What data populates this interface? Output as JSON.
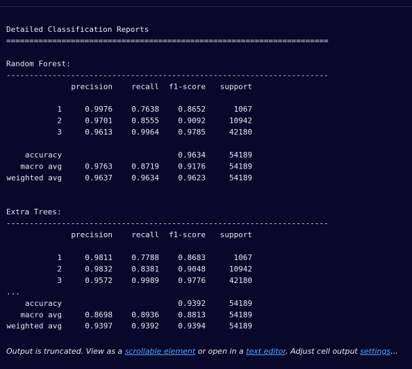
{
  "output": {
    "title": "Detailed Classification Reports",
    "title_rule": "======================================================================",
    "reports": [
      {
        "name": "Random Forest:",
        "rule": "----------------------------------------------------------------------",
        "columns": [
          "precision",
          "recall",
          "f1-score",
          "support"
        ],
        "classes": [
          {
            "label": "1",
            "values": [
              "0.9976",
              "0.7638",
              "0.8652",
              "1067"
            ]
          },
          {
            "label": "2",
            "values": [
              "0.9701",
              "0.8555",
              "0.9092",
              "10942"
            ]
          },
          {
            "label": "3",
            "values": [
              "0.9613",
              "0.9964",
              "0.9785",
              "42180"
            ]
          }
        ],
        "summary": [
          {
            "label": "accuracy",
            "values": [
              null,
              null,
              "0.9634",
              "54189"
            ]
          },
          {
            "label": "macro avg",
            "values": [
              "0.9763",
              "0.8719",
              "0.9176",
              "54189"
            ]
          },
          {
            "label": "weighted avg",
            "values": [
              "0.9637",
              "0.9634",
              "0.9623",
              "54189"
            ]
          }
        ]
      },
      {
        "name": "Extra Trees:",
        "rule": "----------------------------------------------------------------------",
        "columns": [
          "precision",
          "recall",
          "f1-score",
          "support"
        ],
        "classes": [
          {
            "label": "1",
            "values": [
              "0.9811",
              "0.7788",
              "0.8683",
              "1067"
            ]
          },
          {
            "label": "2",
            "values": [
              "0.9832",
              "0.8381",
              "0.9048",
              "10942"
            ]
          },
          {
            "label": "3",
            "values": [
              "0.9572",
              "0.9989",
              "0.9776",
              "42180"
            ]
          }
        ],
        "truncation_mark": "...",
        "summary": [
          {
            "label": "accuracy",
            "values": [
              null,
              null,
              "0.9392",
              "54189"
            ]
          },
          {
            "label": "macro avg",
            "values": [
              "0.8698",
              "0.8936",
              "0.8813",
              "54189"
            ]
          },
          {
            "label": "weighted avg",
            "values": [
              "0.9397",
              "0.9392",
              "0.9394",
              "54189"
            ]
          }
        ]
      }
    ]
  },
  "footer": {
    "text_1": "Output is truncated. View as a ",
    "link_1": "scrollable element",
    "text_2": " or open in a ",
    "link_2": "text editor",
    "text_3": ". Adjust cell output ",
    "link_3": "settings",
    "text_4": "..."
  }
}
